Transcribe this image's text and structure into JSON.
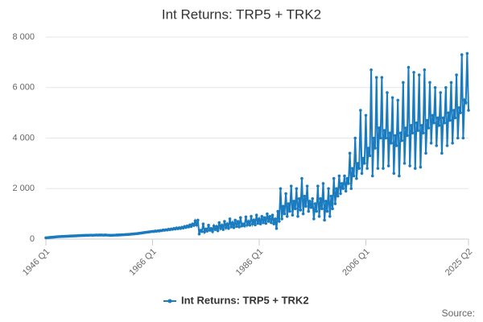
{
  "chart_data": {
    "type": "line",
    "title": "Int Returns: TRP5 + TRK2",
    "source": "Source:",
    "categories": [
      "1946 Q1",
      null,
      null,
      null,
      null,
      null,
      null,
      null,
      null,
      null,
      null,
      null,
      null,
      null,
      null,
      null,
      null,
      null,
      null,
      null,
      null,
      null,
      null,
      null,
      null,
      null,
      null,
      null,
      null,
      null,
      null,
      null,
      null,
      null,
      null,
      null,
      null,
      null,
      null,
      null,
      null,
      null,
      null,
      null,
      null,
      null,
      null,
      null,
      null,
      null,
      null,
      null,
      null,
      null,
      null,
      null,
      null,
      null,
      null,
      null,
      null,
      null,
      null,
      null,
      null,
      null,
      null,
      null,
      null,
      null,
      null,
      null,
      null,
      null,
      null,
      null,
      null,
      null,
      null,
      null,
      "1966 Q1",
      null,
      null,
      null,
      null,
      null,
      null,
      null,
      null,
      null,
      null,
      null,
      null,
      null,
      null,
      null,
      null,
      null,
      null,
      null,
      null,
      null,
      null,
      null,
      null,
      null,
      null,
      null,
      null,
      null,
      null,
      null,
      null,
      null,
      null,
      null,
      null,
      null,
      null,
      null,
      null,
      null,
      null,
      null,
      null,
      null,
      null,
      null,
      null,
      null,
      null,
      null,
      null,
      null,
      null,
      null,
      null,
      null,
      null,
      null,
      null,
      null,
      null,
      null,
      null,
      null,
      null,
      null,
      null,
      null,
      null,
      null,
      null,
      null,
      null,
      null,
      null,
      null,
      null,
      null,
      "1986 Q1",
      null,
      null,
      null,
      null,
      null,
      null,
      null,
      null,
      null,
      null,
      null,
      null,
      null,
      null,
      null,
      null,
      null,
      null,
      null,
      null,
      null,
      null,
      null,
      null,
      null,
      null,
      null,
      null,
      null,
      null,
      null,
      null,
      null,
      null,
      null,
      null,
      null,
      null,
      null,
      null,
      null,
      null,
      null,
      null,
      null,
      null,
      null,
      null,
      null,
      null,
      null,
      null,
      null,
      null,
      null,
      null,
      null,
      null,
      null,
      null,
      null,
      null,
      null,
      null,
      null,
      null,
      null,
      null,
      null,
      null,
      null,
      null,
      null,
      null,
      null,
      null,
      null,
      null,
      null,
      "2006 Q1",
      null,
      null,
      null,
      null,
      null,
      null,
      null,
      null,
      null,
      null,
      null,
      null,
      null,
      null,
      null,
      null,
      null,
      null,
      null,
      null,
      null,
      null,
      null,
      null,
      null,
      null,
      null,
      null,
      null,
      null,
      null,
      null,
      null,
      null,
      null,
      null,
      null,
      null,
      null,
      null,
      null,
      null,
      null,
      null,
      null,
      null,
      null,
      null,
      null,
      null,
      null,
      null,
      null,
      null,
      null,
      null,
      null,
      null,
      null,
      null,
      null,
      null,
      null,
      null,
      null,
      null,
      null,
      null,
      null,
      null,
      null,
      null,
      null,
      null,
      null,
      null,
      "2025 Q2"
    ],
    "series": [
      {
        "name": "Int Returns: TRP5 + TRK2",
        "color": "#1a7bbf",
        "values": [
          50,
          55,
          60,
          65,
          70,
          75,
          80,
          85,
          90,
          95,
          100,
          100,
          105,
          105,
          110,
          110,
          115,
          115,
          120,
          120,
          125,
          125,
          130,
          130,
          135,
          135,
          140,
          140,
          145,
          145,
          150,
          150,
          150,
          155,
          155,
          150,
          155,
          155,
          160,
          155,
          160,
          160,
          160,
          155,
          160,
          160,
          155,
          155,
          150,
          150,
          150,
          155,
          155,
          160,
          160,
          165,
          165,
          170,
          170,
          175,
          180,
          180,
          185,
          190,
          195,
          200,
          205,
          210,
          215,
          220,
          230,
          235,
          245,
          250,
          260,
          265,
          275,
          280,
          290,
          295,
          305,
          300,
          320,
          310,
          330,
          320,
          340,
          335,
          360,
          350,
          370,
          360,
          390,
          370,
          400,
          385,
          420,
          400,
          440,
          410,
          450,
          420,
          470,
          440,
          500,
          460,
          520,
          480,
          560,
          500,
          600,
          540,
          720,
          560,
          750,
          200,
          350,
          300,
          600,
          280,
          400,
          320,
          550,
          350,
          420,
          300,
          520,
          380,
          500,
          330,
          650,
          420,
          550,
          380,
          700,
          450,
          600,
          420,
          800,
          480,
          650,
          450,
          750,
          500,
          700,
          480,
          850,
          520,
          600,
          520,
          880,
          560,
          700,
          550,
          900,
          600,
          750,
          560,
          950,
          620,
          800,
          600,
          900,
          650,
          850,
          620,
          1000,
          700,
          900,
          650,
          950,
          600,
          800,
          420,
          1100,
          700,
          2000,
          800,
          1300,
          1000,
          1800,
          900,
          1400,
          1100,
          2100,
          950,
          1500,
          1200,
          2000,
          900,
          1600,
          1150,
          2400,
          1000,
          1700,
          1300,
          2100,
          1100,
          1500,
          1250,
          1600,
          800,
          1400,
          1100,
          2100,
          900,
          1600,
          1200,
          2200,
          750,
          1500,
          1100,
          2000,
          900,
          1700,
          1200,
          2400,
          1400,
          2000,
          1700,
          2500,
          1800,
          2200,
          2000,
          2500,
          1900,
          2400,
          2200,
          3400,
          2000,
          2800,
          2500,
          4000,
          2400,
          3000,
          2800,
          5100,
          2600,
          3200,
          3000,
          4900,
          2800,
          3600,
          3300,
          6700,
          2500,
          4000,
          3600,
          6400,
          2800,
          4400,
          4000,
          6400,
          2800,
          4300,
          4000,
          5800,
          2900,
          4200,
          3800,
          5600,
          2600,
          4100,
          3700,
          5500,
          2500,
          4200,
          3900,
          6200,
          3000,
          4400,
          4100,
          6800,
          2900,
          4500,
          4200,
          6600,
          2800,
          4600,
          4300,
          6500,
          2850,
          4500,
          4200,
          6700,
          3400,
          4700,
          4400,
          6200,
          3800,
          4900,
          4600,
          6000,
          3700,
          4800,
          4500,
          5800,
          3400,
          4800,
          4600,
          6000,
          3700,
          5000,
          4700,
          6200,
          3800,
          5100,
          4800,
          6500,
          4000,
          5200,
          5000,
          7300,
          4000,
          5500,
          5400,
          7350,
          5100
        ]
      }
    ],
    "ylim": [
      0,
      8000
    ],
    "yticks": [
      0,
      {
        "value": 2000,
        "label": "2 000"
      },
      {
        "value": 4000,
        "label": "4 000"
      },
      {
        "value": 6000,
        "label": "6 000"
      },
      {
        "value": 8000,
        "label": "8 000"
      }
    ],
    "grid": true
  }
}
